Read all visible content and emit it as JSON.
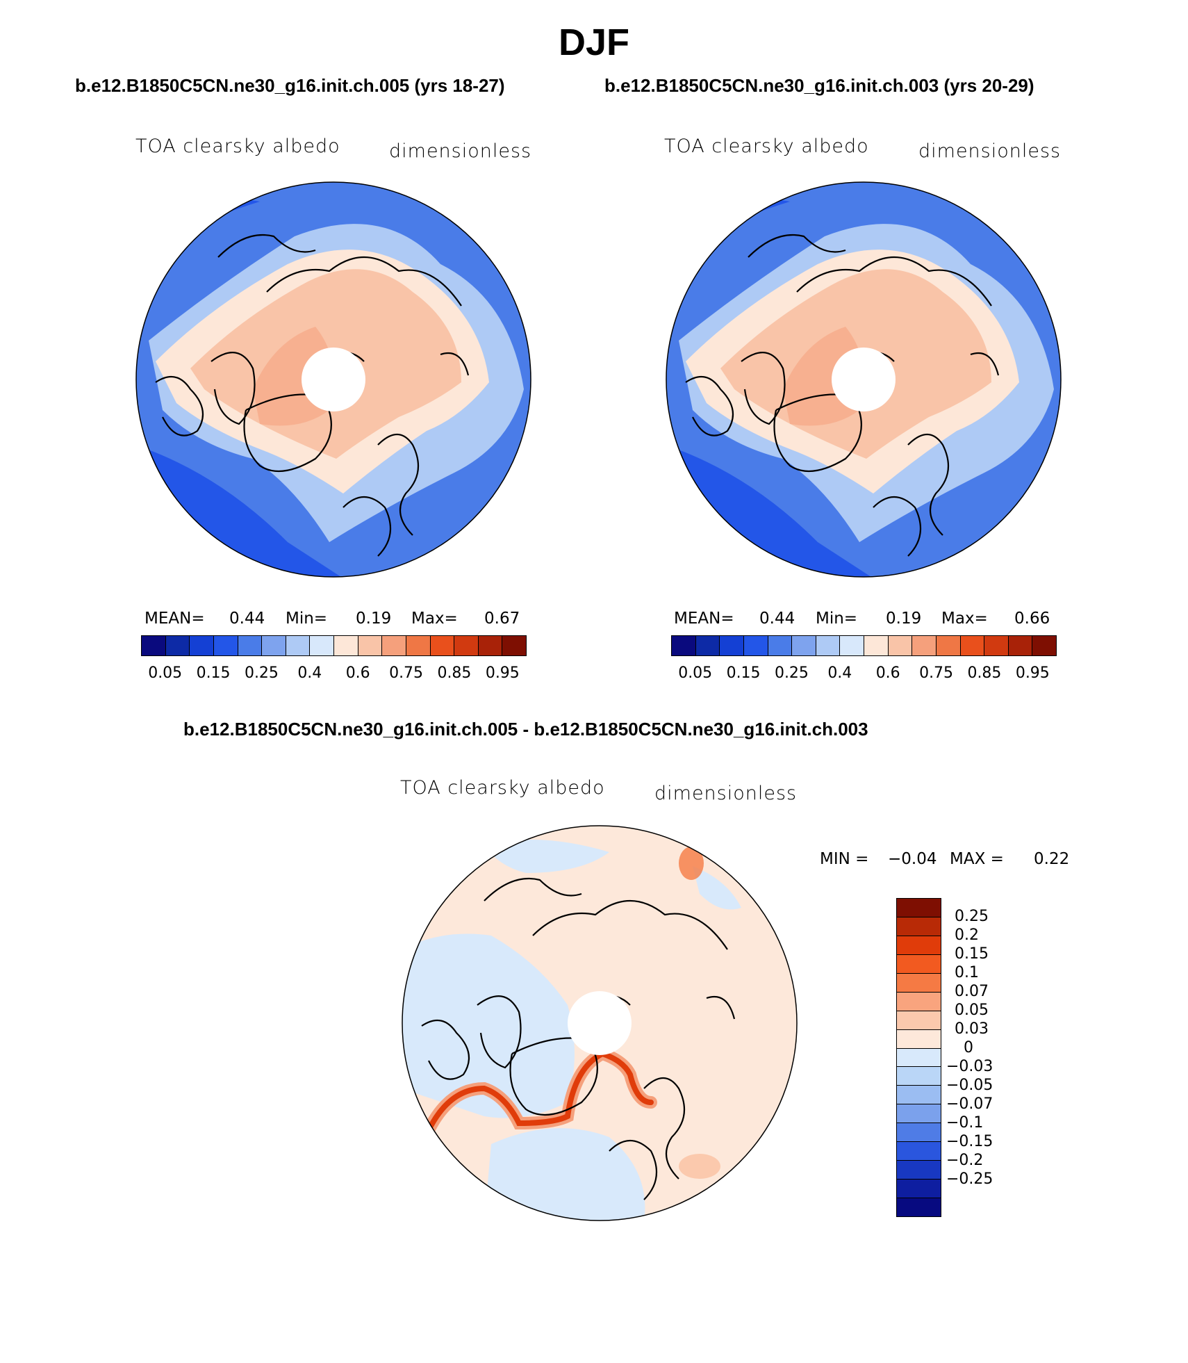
{
  "title": "DJF",
  "panel_left": {
    "case_title": "b.e12.B1850C5CN.ne30_g16.init.ch.005 (yrs 18-27)",
    "variable": "TOA clearsky albedo",
    "units": "dimensionless",
    "stats": {
      "mean_label": "MEAN=",
      "mean": "0.44",
      "min_label": "Min=",
      "min": "0.19",
      "max_label": "Max=",
      "max": "0.67"
    }
  },
  "panel_right": {
    "case_title": "b.e12.B1850C5CN.ne30_g16.init.ch.003 (yrs 20-29)",
    "variable": "TOA clearsky albedo",
    "units": "dimensionless",
    "stats": {
      "mean_label": "MEAN=",
      "mean": "0.44",
      "min_label": "Min=",
      "min": "0.19",
      "max_label": "Max=",
      "max": "0.66"
    }
  },
  "diff_panel": {
    "title": "b.e12.B1850C5CN.ne30_g16.init.ch.005 - b.e12.B1850C5CN.ne30_g16.init.ch.003",
    "variable": "TOA clearsky albedo",
    "units": "dimensionless",
    "stats": {
      "min_label": "MIN =",
      "min": "−0.04",
      "max_label": "MAX =",
      "max": "0.22"
    }
  },
  "chart_data": [
    {
      "type": "heatmap",
      "title": "TOA clearsky albedo",
      "projection": "north polar stereographic",
      "units": "dimensionless",
      "colorbar": {
        "tick_labels": [
          "0.05",
          "0.15",
          "0.25",
          "0.4",
          "0.6",
          "0.75",
          "0.85",
          "0.95"
        ],
        "colors": [
          "#0a0a7e",
          "#0d2aa6",
          "#1440d4",
          "#2356e8",
          "#4a7ce8",
          "#7ea3ee",
          "#aecaf5",
          "#d8e8fb",
          "#fde7d8",
          "#f9c4a8",
          "#f5a07c",
          "#ef7745",
          "#e9501c",
          "#d13a10",
          "#a82208",
          "#7e0f02"
        ]
      },
      "stats": {
        "mean": 0.44,
        "min": 0.19,
        "max": 0.67
      }
    },
    {
      "type": "heatmap",
      "title": "TOA clearsky albedo",
      "projection": "north polar stereographic",
      "units": "dimensionless",
      "colorbar": {
        "tick_labels": [
          "0.05",
          "0.15",
          "0.25",
          "0.4",
          "0.6",
          "0.75",
          "0.85",
          "0.95"
        ],
        "colors": [
          "#0a0a7e",
          "#0d2aa6",
          "#1440d4",
          "#2356e8",
          "#4a7ce8",
          "#7ea3ee",
          "#aecaf5",
          "#d8e8fb",
          "#fde7d8",
          "#f9c4a8",
          "#f5a07c",
          "#ef7745",
          "#e9501c",
          "#d13a10",
          "#a82208",
          "#7e0f02"
        ]
      },
      "stats": {
        "mean": 0.44,
        "min": 0.19,
        "max": 0.66
      }
    },
    {
      "type": "heatmap",
      "title": "TOA clearsky albedo",
      "projection": "north polar stereographic",
      "units": "dimensionless",
      "colorbar": {
        "tick_labels": [
          "0.25",
          "0.2",
          "0.15",
          "0.1",
          "0.07",
          "0.05",
          "0.03",
          "0",
          "−0.03",
          "−0.05",
          "−0.07",
          "−0.1",
          "−0.15",
          "−0.2",
          "−0.25"
        ],
        "colors": [
          "#7e0f02",
          "#b82a06",
          "#e03c0a",
          "#f25a20",
          "#f57a44",
          "#f9a47e",
          "#fbc9ad",
          "#fde8da",
          "#d8e9fb",
          "#bad6f7",
          "#9bbdf2",
          "#7ba1ec",
          "#4f7ce6",
          "#2a56de",
          "#1838c2",
          "#0e1ea0",
          "#070a80"
        ]
      },
      "stats": {
        "min": -0.04,
        "max": 0.22
      }
    }
  ]
}
